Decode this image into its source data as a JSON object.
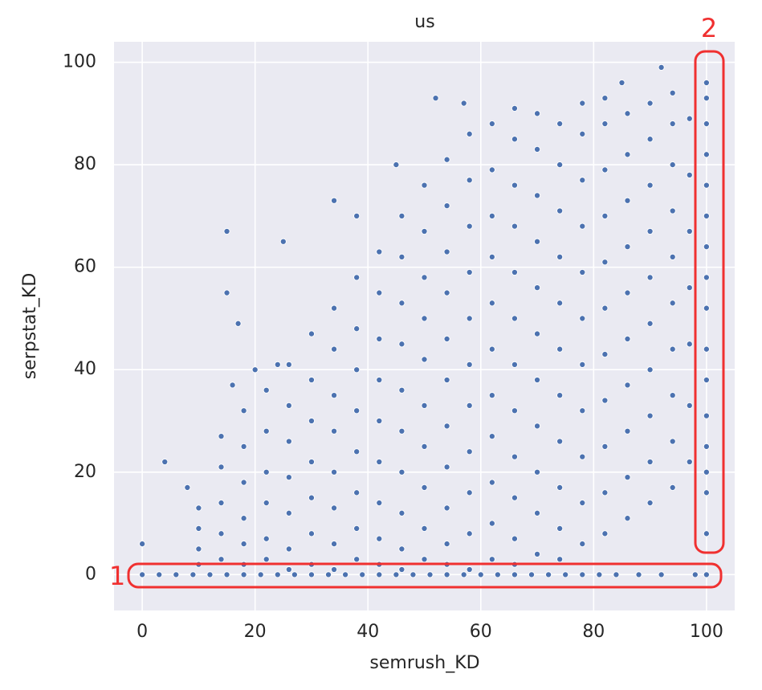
{
  "chart_data": {
    "type": "scatter",
    "title": "us",
    "x_label": "semrush_KD",
    "y_label": "serpstat_KD",
    "color": "#4c72b0",
    "grid": true,
    "xlim": [
      -5,
      105
    ],
    "ylim": [
      -7,
      104
    ],
    "xticks": [
      0,
      20,
      40,
      60,
      80,
      100
    ],
    "yticks": [
      0,
      20,
      40,
      60,
      80,
      100
    ],
    "annotations": [
      "1",
      "2"
    ],
    "x": [
      0,
      3,
      6,
      9,
      12,
      15,
      18,
      21,
      24,
      27,
      30,
      33,
      36,
      39,
      42,
      45,
      48,
      51,
      54,
      57,
      60,
      63,
      66,
      69,
      72,
      75,
      78,
      81,
      84,
      88,
      92,
      98,
      100,
      100,
      100,
      100,
      100,
      100,
      100,
      100,
      100,
      100,
      100,
      100,
      100,
      100,
      100,
      100,
      100,
      0,
      4,
      8,
      15,
      15,
      17,
      16,
      20,
      25,
      24,
      34,
      38,
      45,
      52,
      57,
      92,
      85,
      10,
      10,
      10,
      10,
      14,
      14,
      14,
      14,
      14,
      18,
      18,
      18,
      18,
      18,
      18,
      22,
      22,
      22,
      22,
      22,
      22,
      26,
      26,
      26,
      26,
      26,
      26,
      26,
      30,
      30,
      30,
      30,
      30,
      30,
      30,
      34,
      34,
      34,
      34,
      34,
      34,
      34,
      34,
      38,
      38,
      38,
      38,
      38,
      38,
      38,
      38,
      42,
      42,
      42,
      42,
      42,
      42,
      42,
      42,
      42,
      46,
      46,
      46,
      46,
      46,
      46,
      46,
      46,
      46,
      46,
      50,
      50,
      50,
      50,
      50,
      50,
      50,
      50,
      50,
      50,
      54,
      54,
      54,
      54,
      54,
      54,
      54,
      54,
      54,
      54,
      54,
      58,
      58,
      58,
      58,
      58,
      58,
      58,
      58,
      58,
      58,
      58,
      62,
      62,
      62,
      62,
      62,
      62,
      62,
      62,
      62,
      62,
      62,
      66,
      66,
      66,
      66,
      66,
      66,
      66,
      66,
      66,
      66,
      66,
      66,
      70,
      70,
      70,
      70,
      70,
      70,
      70,
      70,
      70,
      70,
      70,
      74,
      74,
      74,
      74,
      74,
      74,
      74,
      74,
      74,
      74,
      74,
      78,
      78,
      78,
      78,
      78,
      78,
      78,
      78,
      78,
      78,
      78,
      82,
      82,
      82,
      82,
      82,
      82,
      82,
      82,
      82,
      82,
      82,
      86,
      86,
      86,
      86,
      86,
      86,
      86,
      86,
      86,
      86,
      90,
      90,
      90,
      90,
      90,
      90,
      90,
      90,
      90,
      90,
      94,
      94,
      94,
      94,
      94,
      94,
      94,
      94,
      94,
      94,
      97,
      97,
      97,
      97,
      97,
      97,
      97
    ],
    "values": [
      0,
      0,
      0,
      0,
      0,
      0,
      0,
      0,
      0,
      0,
      0,
      0,
      0,
      0,
      0,
      0,
      0,
      0,
      0,
      0,
      0,
      0,
      0,
      0,
      0,
      0,
      0,
      0,
      0,
      0,
      0,
      0,
      0,
      8,
      16,
      20,
      25,
      31,
      38,
      44,
      52,
      58,
      64,
      70,
      76,
      82,
      88,
      93,
      96,
      6,
      22,
      17,
      67,
      55,
      49,
      37,
      40,
      65,
      41,
      73,
      70,
      80,
      93,
      92,
      99,
      96,
      2,
      5,
      9,
      13,
      3,
      8,
      14,
      21,
      27,
      2,
      6,
      11,
      18,
      25,
      32,
      3,
      7,
      14,
      20,
      28,
      36,
      1,
      5,
      12,
      19,
      26,
      33,
      41,
      2,
      8,
      15,
      22,
      30,
      38,
      47,
      1,
      6,
      13,
      20,
      28,
      35,
      44,
      52,
      3,
      9,
      16,
      24,
      32,
      40,
      48,
      58,
      2,
      7,
      14,
      22,
      30,
      38,
      46,
      55,
      63,
      1,
      5,
      12,
      20,
      28,
      36,
      45,
      53,
      62,
      70,
      3,
      9,
      17,
      25,
      33,
      42,
      50,
      58,
      67,
      76,
      2,
      6,
      13,
      21,
      29,
      38,
      46,
      55,
      63,
      72,
      81,
      1,
      8,
      16,
      24,
      33,
      41,
      50,
      59,
      68,
      77,
      86,
      3,
      10,
      18,
      27,
      35,
      44,
      53,
      62,
      70,
      79,
      88,
      2,
      7,
      15,
      23,
      32,
      41,
      50,
      59,
      68,
      76,
      85,
      91,
      4,
      12,
      20,
      29,
      38,
      47,
      56,
      65,
      74,
      83,
      90,
      3,
      9,
      17,
      26,
      35,
      44,
      53,
      62,
      71,
      80,
      88,
      6,
      14,
      23,
      32,
      41,
      50,
      59,
      68,
      77,
      86,
      92,
      8,
      16,
      25,
      34,
      43,
      52,
      61,
      70,
      79,
      88,
      93,
      11,
      19,
      28,
      37,
      46,
      55,
      64,
      73,
      82,
      90,
      14,
      22,
      31,
      40,
      49,
      58,
      67,
      76,
      85,
      92,
      17,
      26,
      35,
      44,
      53,
      62,
      71,
      80,
      88,
      94,
      22,
      33,
      45,
      56,
      67,
      78,
      89
    ]
  }
}
